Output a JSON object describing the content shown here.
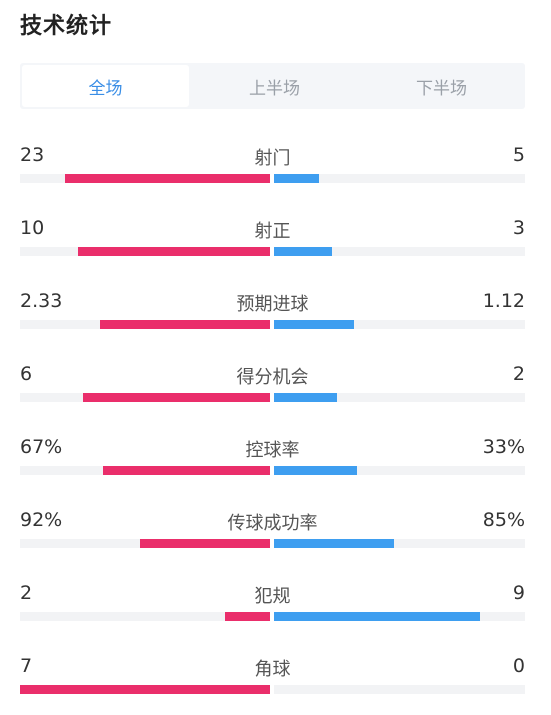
{
  "title": "技术统计",
  "tabs": [
    {
      "label": "全场",
      "active": true
    },
    {
      "label": "上半场",
      "active": false
    },
    {
      "label": "下半场",
      "active": false
    }
  ],
  "colors": {
    "home_bar": "#ea2e6b",
    "away_bar": "#3e9ef0",
    "active_tab": "#3a8ee6"
  },
  "stats": [
    {
      "label": "射门",
      "home": "23",
      "away": "5",
      "home_frac": 0.82,
      "away_frac": 0.18
    },
    {
      "label": "射正",
      "home": "10",
      "away": "3",
      "home_frac": 0.77,
      "away_frac": 0.23
    },
    {
      "label": "预期进球",
      "home": "2.33",
      "away": "1.12",
      "home_frac": 0.68,
      "away_frac": 0.32
    },
    {
      "label": "得分机会",
      "home": "6",
      "away": "2",
      "home_frac": 0.75,
      "away_frac": 0.25
    },
    {
      "label": "控球率",
      "home": "67%",
      "away": "33%",
      "home_frac": 0.67,
      "away_frac": 0.33
    },
    {
      "label": "传球成功率",
      "home": "92%",
      "away": "85%",
      "home_frac": 0.52,
      "away_frac": 0.48
    },
    {
      "label": "犯规",
      "home": "2",
      "away": "9",
      "home_frac": 0.18,
      "away_frac": 0.82
    },
    {
      "label": "角球",
      "home": "7",
      "away": "0",
      "home_frac": 1.0,
      "away_frac": 0.0
    }
  ]
}
